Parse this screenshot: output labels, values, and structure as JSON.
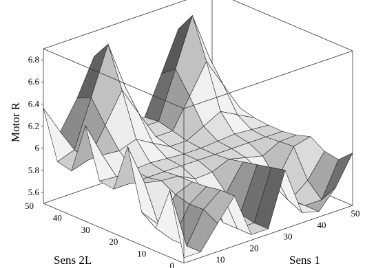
{
  "chart_data": {
    "type": "surface3d",
    "title": "",
    "zlabel": "Motor R",
    "ylabel": "Sens 2L",
    "xlabel": "Sens 1",
    "x_ticks": [
      "0",
      "10",
      "20",
      "30",
      "40",
      "50"
    ],
    "y_ticks": [
      "0",
      "10",
      "20",
      "30",
      "40",
      "50"
    ],
    "z_ticks": [
      "5.6",
      "5.8",
      "6",
      "6.2",
      "6.4",
      "6.6",
      "6.8"
    ],
    "xlim": [
      0,
      50
    ],
    "ylim": [
      0,
      50
    ],
    "zlim": [
      5.5,
      6.9
    ],
    "grid_step": 5,
    "surface_color": "#d6d6d6",
    "shadow_color": "#5a5a5a",
    "description_of_shape": "Gray shaded surface; two tall peaks near Sens 1 ≈ 15 and ≈ 40 at high Sens 2L, oscillating ridge along Sens 1 = 0 edge, flat plateau ≈ 5.9 for Sens 2L below ~25, deep valleys at low Sens 2L."
  }
}
